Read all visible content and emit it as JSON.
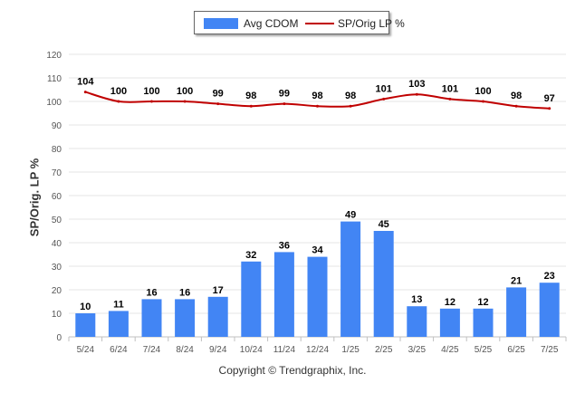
{
  "chart_data": {
    "type": "bar",
    "ylabel": "SP/Orig. LP %",
    "ylim": [
      0,
      120
    ],
    "yticks": [
      0,
      10,
      20,
      30,
      40,
      50,
      60,
      70,
      80,
      90,
      100,
      110,
      120
    ],
    "grid": true,
    "legend_position": "top-center",
    "categories": [
      "5/24",
      "6/24",
      "7/24",
      "8/24",
      "9/24",
      "10/24",
      "11/24",
      "12/24",
      "1/25",
      "2/25",
      "3/25",
      "4/25",
      "5/25",
      "6/25",
      "7/25"
    ],
    "series": [
      {
        "name": "Avg CDOM",
        "type": "bar",
        "color": "#4285f4",
        "values": [
          10,
          11,
          16,
          16,
          17,
          32,
          36,
          34,
          49,
          45,
          13,
          12,
          12,
          21,
          23
        ]
      },
      {
        "name": "SP/Orig LP %",
        "type": "line",
        "color": "#c00000",
        "values": [
          104,
          100,
          100,
          100,
          99,
          98,
          99,
          98,
          98,
          101,
          103,
          101,
          100,
          98,
          97
        ]
      }
    ]
  },
  "legend": {
    "bar_label": "Avg CDOM",
    "line_label": "SP/Orig LP %"
  },
  "copyright": "Copyright © Trendgraphix, Inc."
}
